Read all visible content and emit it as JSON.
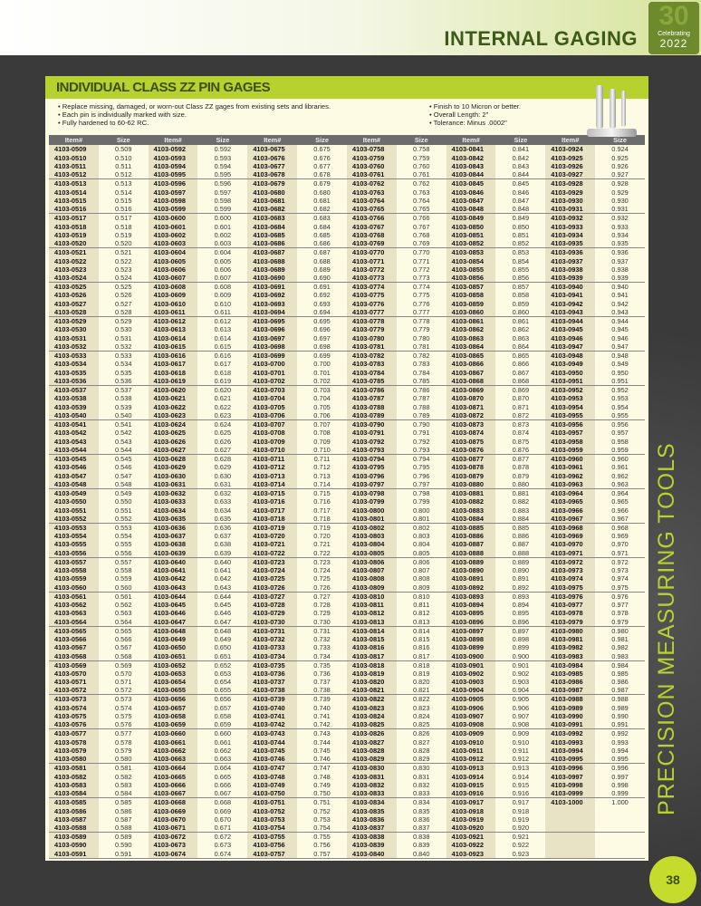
{
  "header": {
    "title": "INTERNAL GAGING",
    "logo_number": "30",
    "logo_text": "Celebrating",
    "logo_year": "2022"
  },
  "panel": {
    "title": "INDIVIDUAL CLASS ZZ PIN GAGES",
    "bullets_left": [
      "Replace missing, damaged, or worn-out Class ZZ gages from existing sets and libraries.",
      "Each pin is individually marked with size.",
      "Fully hardened to 60-62 RC."
    ],
    "bullets_right": [
      "Finish to 10 Micron or better.",
      "Overall Length: 2\"",
      "Tolerance: Minus .0002\""
    ]
  },
  "table": {
    "headers": [
      "Item#",
      "Size",
      "Item#",
      "Size",
      "Item#",
      "Size",
      "Item#",
      "Size",
      "Item#",
      "Size",
      "Item#",
      "Size"
    ],
    "ranges": [
      [
        509,
        591
      ],
      [
        592,
        674
      ],
      [
        675,
        757
      ],
      [
        758,
        840
      ],
      [
        841,
        923
      ],
      [
        924,
        1000
      ]
    ],
    "item_prefix": "4103-"
  },
  "side_text": "PRECISION MEASURING TOOLS",
  "page_number": "38"
}
